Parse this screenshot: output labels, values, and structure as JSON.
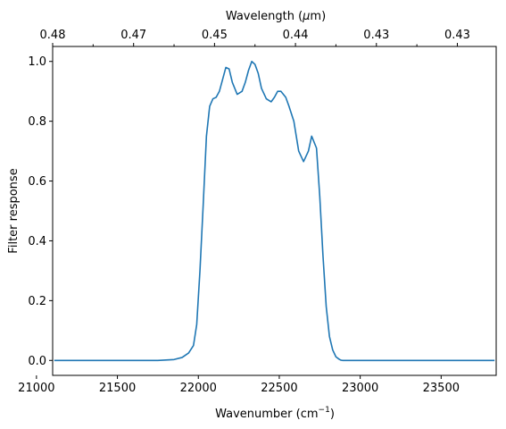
{
  "chart_data": {
    "type": "line",
    "xlabel": "Wavenumber (cm",
    "xlabel_sup": "−1",
    "xlabel_suffix": ")",
    "ylabel": "Filter response",
    "top_xlabel": "Wavelength (",
    "top_xlabel_mu": "μ",
    "top_xlabel_suffix": "m)",
    "xlim": [
      21100,
      23840
    ],
    "ylim": [
      -0.05,
      1.05
    ],
    "grid": false,
    "x_ticks": [
      21000,
      21500,
      22000,
      22500,
      23000,
      23500
    ],
    "x_tick_labels": [
      "21000",
      "21500",
      "22000",
      "22500",
      "23000",
      "23500"
    ],
    "y_ticks": [
      0.0,
      0.2,
      0.4,
      0.6,
      0.8,
      1.0
    ],
    "y_tick_labels": [
      "0.0",
      "0.2",
      "0.4",
      "0.6",
      "0.8",
      "1.0"
    ],
    "top_ticks": [
      21100,
      21350,
      21600,
      21850,
      22100,
      22350,
      22600,
      22850,
      23100,
      23350,
      23600
    ],
    "top_tick_labels": [
      "0.48",
      "",
      "0.47",
      "",
      "0.45",
      "",
      "0.44",
      "",
      "0.43",
      "",
      "0.43"
    ],
    "series": [
      {
        "color": "#1f77b4",
        "x": [
          21110,
          21500,
          21750,
          21850,
          21900,
          21940,
          21970,
          21990,
          22010,
          22030,
          22050,
          22070,
          22090,
          22110,
          22130,
          22150,
          22170,
          22190,
          22210,
          22240,
          22270,
          22290,
          22310,
          22330,
          22350,
          22370,
          22390,
          22420,
          22450,
          22470,
          22490,
          22510,
          22540,
          22560,
          22590,
          22620,
          22650,
          22680,
          22700,
          22730,
          22750,
          22770,
          22790,
          22810,
          22830,
          22850,
          22870,
          22880,
          22890,
          22900,
          22910,
          22920,
          22935,
          22950,
          22970,
          23000,
          23050,
          23200,
          23500,
          23830
        ],
        "y": [
          0.0,
          0.0,
          0.0,
          0.003,
          0.01,
          0.025,
          0.05,
          0.12,
          0.3,
          0.52,
          0.75,
          0.85,
          0.875,
          0.88,
          0.9,
          0.94,
          0.98,
          0.975,
          0.93,
          0.89,
          0.9,
          0.93,
          0.97,
          1.0,
          0.99,
          0.96,
          0.91,
          0.875,
          0.865,
          0.88,
          0.9,
          0.9,
          0.88,
          0.85,
          0.8,
          0.7,
          0.665,
          0.7,
          0.75,
          0.71,
          0.55,
          0.35,
          0.18,
          0.08,
          0.035,
          0.012,
          0.004,
          0.001,
          0.0,
          0.0,
          0.0,
          0.0,
          0.0,
          0.0,
          0.0,
          0.0,
          0.0,
          0.0,
          0.0,
          0.0
        ]
      }
    ]
  }
}
